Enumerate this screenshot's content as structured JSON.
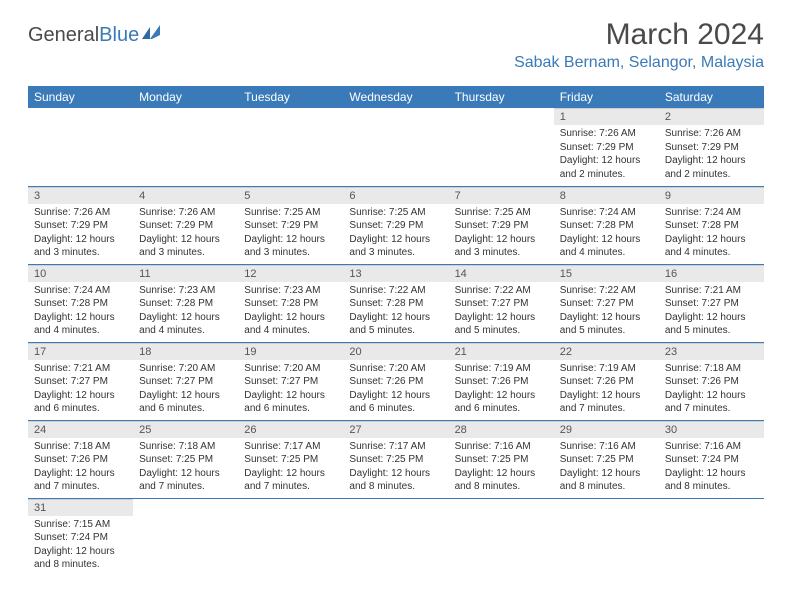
{
  "logo": {
    "text1": "General",
    "text2": "Blue"
  },
  "title": "March 2024",
  "location": "Sabak Bernam, Selangor, Malaysia",
  "colors": {
    "header_bg": "#3a7ab8",
    "header_text": "#ffffff",
    "daynum_bg": "#e9e9e9",
    "row_border": "#3a7ab8",
    "body_text": "#333333",
    "title_text": "#4a4a4a"
  },
  "fonts": {
    "title_size": 30,
    "location_size": 16,
    "th_size": 12,
    "daynum_size": 11,
    "body_size": 10
  },
  "weekdays": [
    "Sunday",
    "Monday",
    "Tuesday",
    "Wednesday",
    "Thursday",
    "Friday",
    "Saturday"
  ],
  "weeks": [
    [
      null,
      null,
      null,
      null,
      null,
      {
        "n": "1",
        "sr": "7:26 AM",
        "ss": "7:29 PM",
        "dl": "12 hours and 2 minutes."
      },
      {
        "n": "2",
        "sr": "7:26 AM",
        "ss": "7:29 PM",
        "dl": "12 hours and 2 minutes."
      }
    ],
    [
      {
        "n": "3",
        "sr": "7:26 AM",
        "ss": "7:29 PM",
        "dl": "12 hours and 3 minutes."
      },
      {
        "n": "4",
        "sr": "7:26 AM",
        "ss": "7:29 PM",
        "dl": "12 hours and 3 minutes."
      },
      {
        "n": "5",
        "sr": "7:25 AM",
        "ss": "7:29 PM",
        "dl": "12 hours and 3 minutes."
      },
      {
        "n": "6",
        "sr": "7:25 AM",
        "ss": "7:29 PM",
        "dl": "12 hours and 3 minutes."
      },
      {
        "n": "7",
        "sr": "7:25 AM",
        "ss": "7:29 PM",
        "dl": "12 hours and 3 minutes."
      },
      {
        "n": "8",
        "sr": "7:24 AM",
        "ss": "7:28 PM",
        "dl": "12 hours and 4 minutes."
      },
      {
        "n": "9",
        "sr": "7:24 AM",
        "ss": "7:28 PM",
        "dl": "12 hours and 4 minutes."
      }
    ],
    [
      {
        "n": "10",
        "sr": "7:24 AM",
        "ss": "7:28 PM",
        "dl": "12 hours and 4 minutes."
      },
      {
        "n": "11",
        "sr": "7:23 AM",
        "ss": "7:28 PM",
        "dl": "12 hours and 4 minutes."
      },
      {
        "n": "12",
        "sr": "7:23 AM",
        "ss": "7:28 PM",
        "dl": "12 hours and 4 minutes."
      },
      {
        "n": "13",
        "sr": "7:22 AM",
        "ss": "7:28 PM",
        "dl": "12 hours and 5 minutes."
      },
      {
        "n": "14",
        "sr": "7:22 AM",
        "ss": "7:27 PM",
        "dl": "12 hours and 5 minutes."
      },
      {
        "n": "15",
        "sr": "7:22 AM",
        "ss": "7:27 PM",
        "dl": "12 hours and 5 minutes."
      },
      {
        "n": "16",
        "sr": "7:21 AM",
        "ss": "7:27 PM",
        "dl": "12 hours and 5 minutes."
      }
    ],
    [
      {
        "n": "17",
        "sr": "7:21 AM",
        "ss": "7:27 PM",
        "dl": "12 hours and 6 minutes."
      },
      {
        "n": "18",
        "sr": "7:20 AM",
        "ss": "7:27 PM",
        "dl": "12 hours and 6 minutes."
      },
      {
        "n": "19",
        "sr": "7:20 AM",
        "ss": "7:27 PM",
        "dl": "12 hours and 6 minutes."
      },
      {
        "n": "20",
        "sr": "7:20 AM",
        "ss": "7:26 PM",
        "dl": "12 hours and 6 minutes."
      },
      {
        "n": "21",
        "sr": "7:19 AM",
        "ss": "7:26 PM",
        "dl": "12 hours and 6 minutes."
      },
      {
        "n": "22",
        "sr": "7:19 AM",
        "ss": "7:26 PM",
        "dl": "12 hours and 7 minutes."
      },
      {
        "n": "23",
        "sr": "7:18 AM",
        "ss": "7:26 PM",
        "dl": "12 hours and 7 minutes."
      }
    ],
    [
      {
        "n": "24",
        "sr": "7:18 AM",
        "ss": "7:26 PM",
        "dl": "12 hours and 7 minutes."
      },
      {
        "n": "25",
        "sr": "7:18 AM",
        "ss": "7:25 PM",
        "dl": "12 hours and 7 minutes."
      },
      {
        "n": "26",
        "sr": "7:17 AM",
        "ss": "7:25 PM",
        "dl": "12 hours and 7 minutes."
      },
      {
        "n": "27",
        "sr": "7:17 AM",
        "ss": "7:25 PM",
        "dl": "12 hours and 8 minutes."
      },
      {
        "n": "28",
        "sr": "7:16 AM",
        "ss": "7:25 PM",
        "dl": "12 hours and 8 minutes."
      },
      {
        "n": "29",
        "sr": "7:16 AM",
        "ss": "7:25 PM",
        "dl": "12 hours and 8 minutes."
      },
      {
        "n": "30",
        "sr": "7:16 AM",
        "ss": "7:24 PM",
        "dl": "12 hours and 8 minutes."
      }
    ],
    [
      {
        "n": "31",
        "sr": "7:15 AM",
        "ss": "7:24 PM",
        "dl": "12 hours and 8 minutes."
      },
      null,
      null,
      null,
      null,
      null,
      null
    ]
  ],
  "labels": {
    "sunrise": "Sunrise:",
    "sunset": "Sunset:",
    "daylight": "Daylight:"
  }
}
